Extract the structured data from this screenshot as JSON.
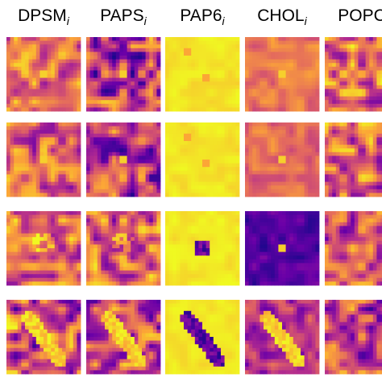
{
  "headers": [
    {
      "name": "DPSM",
      "subscript": "i"
    },
    {
      "name": "PAPS",
      "subscript": "i"
    },
    {
      "name": "PAP6",
      "subscript": "i"
    },
    {
      "name": "CHOL",
      "subscript": "i"
    },
    {
      "name": "POPC"
    }
  ]
}
